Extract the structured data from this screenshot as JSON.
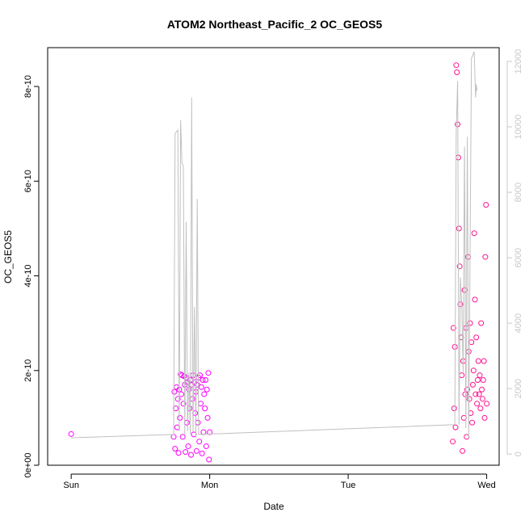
{
  "chart_data": {
    "type": "scatter",
    "title": "ATOM2 Northeast_Pacific_2 OC_GEOS5",
    "xlabel": "Date",
    "ylabel": "OC_GEOS5",
    "x_ticks": [
      "Sun",
      "Mon",
      "Tue",
      "Wed"
    ],
    "x_tick_values": [
      0,
      1,
      2,
      3
    ],
    "xlim": [
      -0.17,
      3.09
    ],
    "ylim": [
      0,
      8.82e-10
    ],
    "y_ticks": [
      0,
      2e-10,
      4e-10,
      6e-10,
      8e-10
    ],
    "y_tick_labels": [
      "0e+00",
      "2e-10",
      "4e-10",
      "6e-10",
      "8e-10"
    ],
    "y2_ticks": [
      0,
      2000,
      4000,
      6000,
      8000,
      10000,
      12000
    ],
    "y2_tick_labels": [
      "0",
      "2000",
      "4000",
      "6000",
      "8000",
      "10000",
      "12000"
    ],
    "y2lim": [
      -340,
      12420
    ],
    "grid": false,
    "series": [
      {
        "name": "",
        "role": "OC_GEOS5 points, day 1",
        "color": "#ff00ff",
        "marker": "open-circle",
        "points": [
          [
            0.0,
            6.6e-11
          ],
          [
            0.74,
            6e-11
          ],
          [
            0.745,
            1.55e-10
          ],
          [
            0.75,
            3.5e-11
          ],
          [
            0.755,
            1.2e-10
          ],
          [
            0.76,
            1.65e-10
          ],
          [
            0.765,
            8e-11
          ],
          [
            0.77,
            1.4e-10
          ],
          [
            0.775,
            2.6e-11
          ],
          [
            0.78,
            1.6e-10
          ],
          [
            0.785,
            1e-10
          ],
          [
            0.79,
            1.92e-10
          ],
          [
            0.795,
            1.5e-10
          ],
          [
            0.8,
            1.9e-10
          ],
          [
            0.805,
            6e-11
          ],
          [
            0.81,
            1.3e-10
          ],
          [
            0.815,
            1.88e-10
          ],
          [
            0.82,
            1.7e-10
          ],
          [
            0.825,
            2.8e-11
          ],
          [
            0.83,
            1.85e-10
          ],
          [
            0.835,
            9e-11
          ],
          [
            0.84,
            1.75e-10
          ],
          [
            0.845,
            4e-11
          ],
          [
            0.85,
            1.6e-10
          ],
          [
            0.855,
            1.2e-10
          ],
          [
            0.86,
            1.8e-10
          ],
          [
            0.865,
            2.2e-11
          ],
          [
            0.87,
            1.7e-10
          ],
          [
            0.875,
            1.4e-10
          ],
          [
            0.88,
            1.9e-10
          ],
          [
            0.885,
            6.5e-11
          ],
          [
            0.89,
            1.75e-10
          ],
          [
            0.895,
            1.1e-10
          ],
          [
            0.9,
            1.55e-10
          ],
          [
            0.905,
            3e-11
          ],
          [
            0.91,
            1.7e-10
          ],
          [
            0.915,
            9e-11
          ],
          [
            0.92,
            1.85e-10
          ],
          [
            0.925,
            5e-11
          ],
          [
            0.93,
            1.9e-10
          ],
          [
            0.935,
            1.3e-10
          ],
          [
            0.94,
            1.65e-10
          ],
          [
            0.945,
            2.5e-11
          ],
          [
            0.95,
            1.8e-10
          ],
          [
            0.955,
            7e-11
          ],
          [
            0.96,
            1.5e-10
          ],
          [
            0.965,
            1.2e-10
          ],
          [
            0.97,
            1.8e-10
          ],
          [
            0.975,
            4e-11
          ],
          [
            0.98,
            1.6e-10
          ],
          [
            0.985,
            1e-10
          ],
          [
            0.99,
            1.95e-10
          ],
          [
            0.995,
            1.2e-11
          ],
          [
            1.0,
            7e-11
          ]
        ]
      },
      {
        "name": "",
        "role": "OC_GEOS5 points, day 4",
        "color": "#ff1493",
        "marker": "open-circle",
        "points": [
          [
            2.755,
            5e-11
          ],
          [
            2.76,
            2.9e-10
          ],
          [
            2.765,
            1.2e-10
          ],
          [
            2.77,
            2.5e-10
          ],
          [
            2.775,
            8e-11
          ],
          [
            2.78,
            8.45e-10
          ],
          [
            2.785,
            8.3e-10
          ],
          [
            2.79,
            7.2e-10
          ],
          [
            2.795,
            6.5e-10
          ],
          [
            2.8,
            5e-10
          ],
          [
            2.805,
            4.2e-10
          ],
          [
            2.81,
            3.4e-10
          ],
          [
            2.815,
            2.7e-10
          ],
          [
            2.82,
            1.9e-10
          ],
          [
            2.825,
            3e-11
          ],
          [
            2.83,
            2.2e-10
          ],
          [
            2.835,
            1e-10
          ],
          [
            2.84,
            3.7e-10
          ],
          [
            2.845,
            1.5e-10
          ],
          [
            2.85,
            2.9e-10
          ],
          [
            2.855,
            6e-11
          ],
          [
            2.86,
            1.6e-10
          ],
          [
            2.865,
            4.4e-10
          ],
          [
            2.87,
            2.4e-10
          ],
          [
            2.875,
            1.4e-10
          ],
          [
            2.88,
            3e-10
          ],
          [
            2.885,
            1.1e-10
          ],
          [
            2.89,
            2.6e-10
          ],
          [
            2.895,
            9e-11
          ],
          [
            2.9,
            1.7e-10
          ],
          [
            2.905,
            2e-10
          ],
          [
            2.91,
            4.9e-10
          ],
          [
            2.915,
            3.5e-10
          ],
          [
            2.92,
            1.5e-10
          ],
          [
            2.925,
            2.7e-10
          ],
          [
            2.93,
            1.3e-10
          ],
          [
            2.935,
            1.8e-10
          ],
          [
            2.94,
            2.2e-10
          ],
          [
            2.945,
            1.5e-10
          ],
          [
            2.95,
            1.9e-10
          ],
          [
            2.955,
            1.2e-10
          ],
          [
            2.96,
            3e-10
          ],
          [
            2.965,
            1.6e-10
          ],
          [
            2.97,
            1.4e-10
          ],
          [
            2.975,
            1.8e-10
          ],
          [
            2.98,
            2.2e-10
          ],
          [
            2.985,
            1e-10
          ],
          [
            2.99,
            4.4e-10
          ],
          [
            2.995,
            5.5e-10
          ],
          [
            3.0,
            1.3e-10
          ]
        ]
      },
      {
        "name": "",
        "role": "altitude line (right axis)",
        "color": "#c0c0c0",
        "points": [
          [
            0.0,
            500
          ],
          [
            0.74,
            600
          ],
          [
            0.75,
            9800
          ],
          [
            0.77,
            9900
          ],
          [
            0.78,
            700
          ],
          [
            0.79,
            10200
          ],
          [
            0.8,
            8900
          ],
          [
            0.81,
            8800
          ],
          [
            0.82,
            600
          ],
          [
            0.83,
            7100
          ],
          [
            0.84,
            700
          ],
          [
            0.85,
            2500
          ],
          [
            0.86,
            600
          ],
          [
            0.87,
            10900
          ],
          [
            0.88,
            700
          ],
          [
            0.89,
            4500
          ],
          [
            0.9,
            500
          ],
          [
            0.91,
            7800
          ],
          [
            0.92,
            600
          ],
          [
            0.93,
            600
          ],
          [
            2.77,
            900
          ],
          [
            2.78,
            9800
          ],
          [
            2.79,
            11400
          ],
          [
            2.8,
            900
          ],
          [
            2.81,
            5400
          ],
          [
            2.82,
            4600
          ],
          [
            2.83,
            2500
          ],
          [
            2.84,
            9400
          ],
          [
            2.85,
            800
          ],
          [
            2.86,
            9700
          ],
          [
            2.87,
            500
          ],
          [
            2.88,
            6100
          ],
          [
            2.89,
            12100
          ],
          [
            2.91,
            12300
          ],
          [
            2.92,
            10900
          ],
          [
            2.925,
            11300
          ],
          [
            2.93,
            11100
          ]
        ]
      }
    ]
  }
}
